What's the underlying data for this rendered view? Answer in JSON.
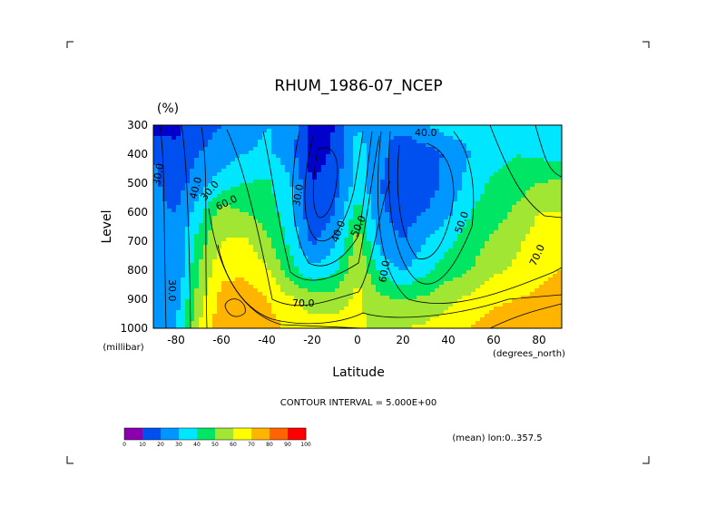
{
  "chart_data": {
    "type": "heatmap",
    "title": "RHUM_1986-07_NCEP",
    "units": "(%)",
    "xlabel": "Latitude",
    "ylabel": "Level",
    "x_units": "(degrees_north)",
    "y_units": "(millibar)",
    "xlim": [
      -90,
      90
    ],
    "ylim": [
      1000,
      300
    ],
    "x_ticks": [
      "-80",
      "-60",
      "-40",
      "-20",
      "0",
      "20",
      "40",
      "60",
      "80"
    ],
    "y_ticks": [
      "300",
      "400",
      "500",
      "600",
      "700",
      "800",
      "900",
      "1000"
    ],
    "contour_interval_text": "CONTOUR INTERVAL = 5.000E+00",
    "mean_text": "(mean) lon:0..357.5",
    "colorbar": {
      "labels": [
        "0",
        "10",
        "20",
        "30",
        "40",
        "50",
        "60",
        "70",
        "80",
        "90",
        "100"
      ],
      "colors": [
        "#8a00b0",
        "#0000cc",
        "#0050f0",
        "#0096ff",
        "#00e6ff",
        "#00e664",
        "#a0e632",
        "#ffff00",
        "#ffb400",
        "#ff6400",
        "#ff0000"
      ]
    },
    "contour_labels": [
      {
        "text": "40.0"
      },
      {
        "text": "30.0"
      },
      {
        "text": "40.0"
      },
      {
        "text": "30.0"
      },
      {
        "text": "60.0"
      },
      {
        "text": "30.0"
      },
      {
        "text": "40.0"
      },
      {
        "text": "50.0"
      },
      {
        "text": "60.0"
      },
      {
        "text": "50.0"
      },
      {
        "text": "70.0"
      },
      {
        "text": "30.0"
      },
      {
        "text": "70.0"
      }
    ],
    "x_grid": [
      -90,
      -80,
      -70,
      -60,
      -50,
      -40,
      -30,
      -20,
      -10,
      0,
      10,
      20,
      30,
      40,
      50,
      60,
      70,
      80,
      90
    ],
    "y_grid": [
      300,
      400,
      500,
      600,
      700,
      800,
      900,
      1000
    ],
    "values": [
      [
        15,
        18,
        25,
        30,
        35,
        40,
        38,
        15,
        20,
        40,
        30,
        35,
        40,
        45,
        45,
        45,
        50,
        48,
        40
      ],
      [
        30,
        22,
        30,
        35,
        40,
        42,
        35,
        15,
        22,
        45,
        35,
        20,
        25,
        32,
        40,
        45,
        50,
        48,
        45
      ],
      [
        32,
        25,
        35,
        45,
        50,
        52,
        42,
        20,
        25,
        45,
        30,
        22,
        25,
        33,
        45,
        52,
        55,
        60,
        62
      ],
      [
        32,
        30,
        45,
        65,
        60,
        55,
        45,
        22,
        30,
        55,
        32,
        25,
        30,
        38,
        50,
        55,
        62,
        70,
        70
      ],
      [
        32,
        30,
        55,
        70,
        72,
        62,
        48,
        28,
        38,
        65,
        35,
        30,
        40,
        48,
        55,
        62,
        68,
        75,
        75
      ],
      [
        32,
        30,
        60,
        78,
        78,
        72,
        55,
        42,
        48,
        70,
        48,
        38,
        48,
        55,
        60,
        68,
        72,
        78,
        80
      ],
      [
        35,
        35,
        65,
        83,
        85,
        80,
        72,
        65,
        65,
        72,
        62,
        60,
        62,
        68,
        72,
        78,
        80,
        82,
        85
      ],
      [
        35,
        40,
        70,
        88,
        90,
        85,
        78,
        75,
        75,
        72,
        68,
        70,
        72,
        75,
        80,
        85,
        85,
        88,
        90
      ]
    ]
  }
}
